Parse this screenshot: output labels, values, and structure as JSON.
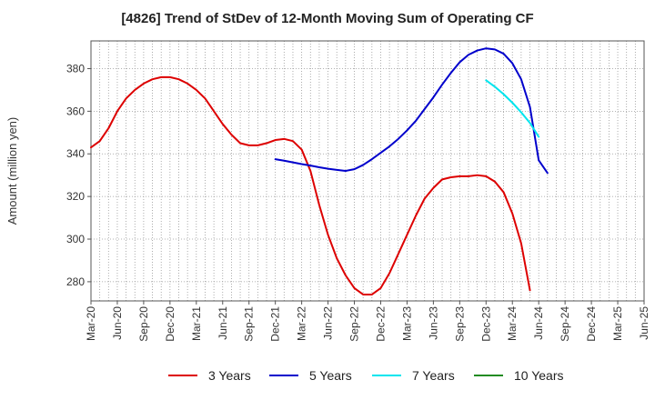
{
  "chart_data": {
    "type": "line",
    "title": "[4826]  Trend of StDev of 12-Month Moving Sum of Operating CF",
    "xlabel": "",
    "ylabel": "Amount (million yen)",
    "ylim": [
      271,
      393
    ],
    "yticks": [
      280,
      300,
      320,
      340,
      360,
      380
    ],
    "x_tick_labels": [
      "Mar-20",
      "Jun-20",
      "Sep-20",
      "Dec-20",
      "Mar-21",
      "Jun-21",
      "Sep-21",
      "Dec-21",
      "Mar-22",
      "Jun-22",
      "Sep-22",
      "Dec-22",
      "Mar-23",
      "Jun-23",
      "Sep-23",
      "Dec-23",
      "Mar-24",
      "Jun-24",
      "Sep-24",
      "Dec-24",
      "Mar-25",
      "Jun-25"
    ],
    "grid": true,
    "legend_position": "bottom",
    "series": [
      {
        "name": "3 Years",
        "color": "#dd0000",
        "start_index": 0,
        "values": [
          343,
          346,
          352,
          360,
          366,
          370,
          373,
          375,
          376,
          376,
          375,
          373,
          370,
          366,
          360,
          354,
          349,
          345,
          344,
          344,
          345,
          346.5,
          347,
          346,
          342,
          332,
          316,
          302,
          291,
          283,
          277,
          274,
          274,
          277,
          284,
          293,
          302,
          311,
          319,
          324,
          328,
          329,
          329.5,
          329.5,
          330,
          329.5,
          327,
          322,
          312,
          298,
          276
        ]
      },
      {
        "name": "5 Years",
        "color": "#0000cc",
        "start_index": 21,
        "values": [
          337.5,
          336.8,
          336,
          335.2,
          334.5,
          333.7,
          333,
          332.5,
          332,
          332.8,
          334.8,
          337.5,
          340.5,
          343.5,
          347,
          351,
          355.5,
          361,
          366.5,
          372.5,
          378,
          383,
          386.5,
          388.5,
          389.5,
          389,
          387,
          382.5,
          375,
          362,
          337,
          331
        ]
      },
      {
        "name": "7 Years",
        "color": "#00e5ee",
        "start_index": 45,
        "values": [
          374.5,
          371.5,
          368,
          364,
          359.5,
          354.5,
          348
        ]
      },
      {
        "name": "10 Years",
        "color": "#228b22",
        "start_index": 0,
        "values": []
      }
    ]
  }
}
